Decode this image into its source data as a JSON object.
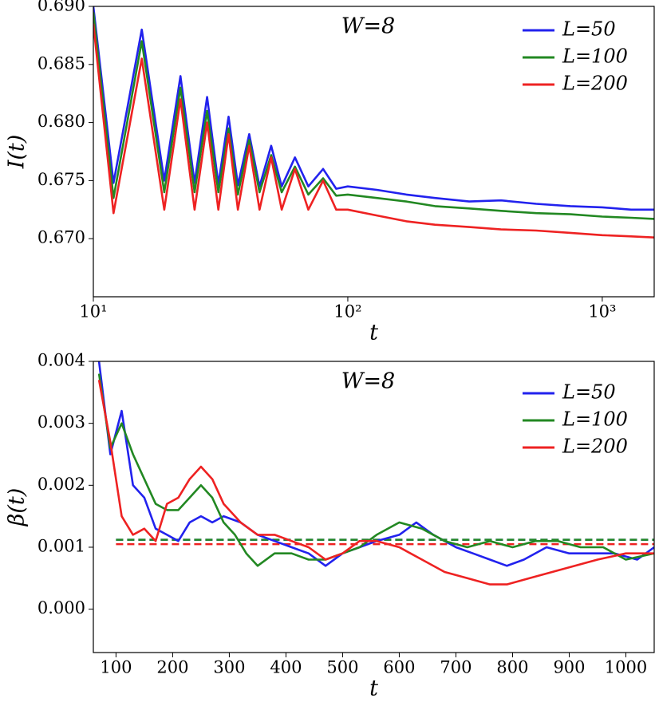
{
  "chart_data": [
    {
      "type": "line",
      "annotation": "W=8",
      "xlabel": "t",
      "ylabel": "I(t)",
      "xscale": "log",
      "legend": "upper right",
      "xlim": [
        10,
        1600
      ],
      "ylim": [
        0.665,
        0.69
      ],
      "xticks": [
        {
          "value": 10,
          "label": "10¹"
        },
        {
          "value": 100,
          "label": "10²"
        },
        {
          "value": 1000,
          "label": "10³"
        }
      ],
      "yticks": [
        {
          "value": 0.67,
          "label": "0.670"
        },
        {
          "value": 0.675,
          "label": "0.675"
        },
        {
          "value": 0.68,
          "label": "0.680"
        },
        {
          "value": 0.685,
          "label": "0.685"
        },
        {
          "value": 0.69,
          "label": "0.690"
        }
      ],
      "series": [
        {
          "name": "L=50",
          "color": "#2222ee",
          "x": [
            10,
            12,
            15.5,
            19,
            22,
            25,
            28,
            31,
            34,
            37,
            41,
            45,
            50,
            55,
            62,
            70,
            80,
            90,
            100,
            130,
            170,
            220,
            300,
            400,
            550,
            750,
            1000,
            1300,
            1600
          ],
          "values": [
            0.69,
            0.6748,
            0.688,
            0.675,
            0.684,
            0.6748,
            0.6822,
            0.6747,
            0.6805,
            0.6746,
            0.679,
            0.6745,
            0.678,
            0.6745,
            0.677,
            0.6745,
            0.676,
            0.6743,
            0.6745,
            0.6742,
            0.6738,
            0.6735,
            0.6732,
            0.6733,
            0.673,
            0.6728,
            0.6727,
            0.6725,
            0.6725
          ]
        },
        {
          "name": "L=100",
          "color": "#228822",
          "x": [
            10,
            12,
            15.5,
            19,
            22,
            25,
            28,
            31,
            34,
            37,
            41,
            45,
            50,
            55,
            62,
            70,
            80,
            90,
            100,
            130,
            170,
            220,
            300,
            400,
            550,
            750,
            1000,
            1300,
            1600
          ],
          "values": [
            0.6895,
            0.6735,
            0.687,
            0.674,
            0.683,
            0.674,
            0.681,
            0.674,
            0.6795,
            0.6738,
            0.6785,
            0.674,
            0.6772,
            0.674,
            0.6762,
            0.6738,
            0.6752,
            0.6737,
            0.6738,
            0.6735,
            0.6732,
            0.6728,
            0.6726,
            0.6724,
            0.6722,
            0.6721,
            0.6719,
            0.6718,
            0.6717
          ]
        },
        {
          "name": "L=200",
          "color": "#ee2222",
          "x": [
            10,
            12,
            15.5,
            19,
            22,
            25,
            28,
            31,
            34,
            37,
            41,
            45,
            50,
            55,
            62,
            70,
            80,
            90,
            100,
            130,
            170,
            220,
            300,
            400,
            550,
            750,
            1000,
            1300,
            1600
          ],
          "values": [
            0.6885,
            0.6722,
            0.6855,
            0.6725,
            0.682,
            0.6725,
            0.68,
            0.6725,
            0.679,
            0.6725,
            0.678,
            0.6725,
            0.677,
            0.6725,
            0.676,
            0.6725,
            0.675,
            0.6725,
            0.6725,
            0.672,
            0.6715,
            0.6712,
            0.671,
            0.6708,
            0.6707,
            0.6705,
            0.6703,
            0.6702,
            0.6701
          ]
        }
      ]
    },
    {
      "type": "line",
      "annotation": "W=8",
      "xlabel": "t",
      "ylabel": "β(t)",
      "legend": "upper right",
      "xlim": [
        60,
        1050
      ],
      "ylim": [
        -0.0007,
        0.004
      ],
      "xticks": [
        100,
        200,
        300,
        400,
        500,
        600,
        700,
        800,
        900,
        1000
      ],
      "yticks": [
        {
          "value": 0,
          "label": "0.000"
        },
        {
          "value": 0.001,
          "label": "0.001"
        },
        {
          "value": 0.002,
          "label": "0.002"
        },
        {
          "value": 0.003,
          "label": "0.003"
        },
        {
          "value": 0.004,
          "label": "0.004"
        }
      ],
      "series": [
        {
          "name": "L=50",
          "color": "#2222ee",
          "x": [
            70,
            90,
            110,
            130,
            150,
            170,
            190,
            210,
            230,
            250,
            270,
            290,
            320,
            350,
            380,
            410,
            440,
            470,
            500,
            530,
            560,
            600,
            630,
            660,
            700,
            730,
            760,
            790,
            820,
            860,
            900,
            940,
            980,
            1020,
            1050
          ],
          "values": [
            0.004,
            0.0025,
            0.0032,
            0.002,
            0.0018,
            0.0013,
            0.0012,
            0.0011,
            0.0014,
            0.0015,
            0.0014,
            0.0015,
            0.0014,
            0.0012,
            0.0011,
            0.001,
            0.0009,
            0.0007,
            0.0009,
            0.001,
            0.0011,
            0.0012,
            0.0014,
            0.0012,
            0.001,
            0.0009,
            0.0008,
            0.0007,
            0.0008,
            0.001,
            0.0009,
            0.0009,
            0.0009,
            0.0008,
            0.001
          ]
        },
        {
          "name": "L=100",
          "color": "#228822",
          "x": [
            70,
            90,
            110,
            130,
            150,
            170,
            190,
            210,
            230,
            250,
            270,
            290,
            310,
            330,
            350,
            380,
            410,
            440,
            470,
            500,
            530,
            560,
            600,
            640,
            680,
            720,
            760,
            800,
            840,
            880,
            920,
            960,
            1000,
            1050
          ],
          "values": [
            0.0038,
            0.0026,
            0.003,
            0.0025,
            0.0021,
            0.0017,
            0.0016,
            0.0016,
            0.0018,
            0.002,
            0.0018,
            0.0014,
            0.0012,
            0.0009,
            0.0007,
            0.0009,
            0.0009,
            0.0008,
            0.0008,
            0.0009,
            0.001,
            0.0012,
            0.0014,
            0.0013,
            0.0011,
            0.001,
            0.0011,
            0.001,
            0.0011,
            0.0011,
            0.001,
            0.001,
            0.0008,
            0.0009
          ]
        },
        {
          "name": "L=200",
          "color": "#ee2222",
          "x": [
            70,
            90,
            110,
            130,
            150,
            170,
            190,
            210,
            230,
            250,
            270,
            290,
            320,
            350,
            380,
            410,
            440,
            470,
            500,
            530,
            560,
            600,
            640,
            680,
            720,
            760,
            790,
            830,
            870,
            910,
            950,
            1000,
            1050
          ],
          "values": [
            0.0037,
            0.0027,
            0.0015,
            0.0012,
            0.0013,
            0.0011,
            0.0017,
            0.0018,
            0.0021,
            0.0023,
            0.0021,
            0.0017,
            0.0014,
            0.0012,
            0.0012,
            0.0011,
            0.001,
            0.0008,
            0.0009,
            0.0011,
            0.0011,
            0.001,
            0.0008,
            0.0006,
            0.0005,
            0.0004,
            0.0004,
            0.0005,
            0.0006,
            0.0007,
            0.0008,
            0.0009,
            0.0009
          ]
        }
      ],
      "hlines": [
        {
          "value": 0.00112,
          "color": "#2222ee",
          "xrange": [
            100,
            1050
          ]
        },
        {
          "value": 0.00112,
          "color": "#228822",
          "xrange": [
            100,
            1050
          ]
        },
        {
          "value": 0.00105,
          "color": "#ee2222",
          "xrange": [
            100,
            1050
          ]
        }
      ]
    }
  ]
}
